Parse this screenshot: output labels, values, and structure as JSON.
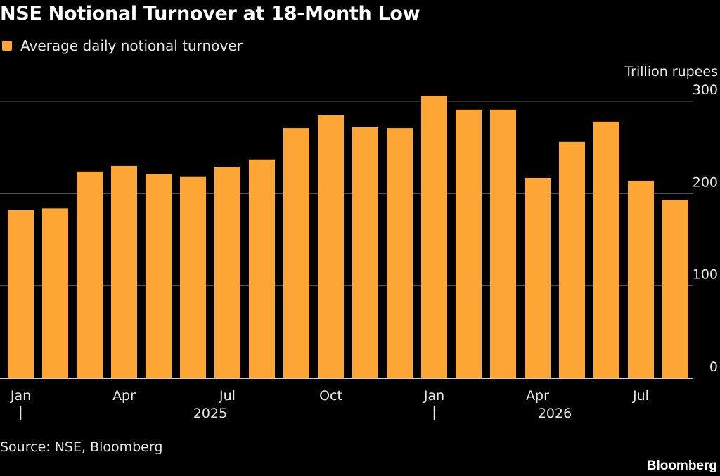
{
  "chart_data": {
    "type": "bar",
    "title": "NSE Notional Turnover at 18-Month Low",
    "ylabel": "Trillion rupees",
    "xlabel": "",
    "ylim": [
      0,
      300
    ],
    "yticks": [
      "0",
      "100",
      "200",
      "300"
    ],
    "grid": true,
    "legend_position": "top-left",
    "categories": [
      "Jan 2025",
      "Feb 2025",
      "Mar 2025",
      "Apr 2025",
      "May 2025",
      "Jun 2025",
      "Jul 2025",
      "Aug 2025",
      "Sep 2025",
      "Oct 2025",
      "Nov 2025",
      "Dec 2025",
      "Jan 2026",
      "Feb 2026",
      "Mar 2026",
      "Apr 2026",
      "May 2026",
      "Jun 2026",
      "Jul 2026",
      "Aug 2026"
    ],
    "xtick_labels": [
      {
        "index": 0,
        "label": "Jan"
      },
      {
        "index": 3,
        "label": "Apr"
      },
      {
        "index": 6,
        "label": "Jul"
      },
      {
        "index": 9,
        "label": "Oct"
      },
      {
        "index": 12,
        "label": "Jan"
      },
      {
        "index": 15,
        "label": "Apr"
      },
      {
        "index": 18,
        "label": "Jul"
      }
    ],
    "year_labels": [
      {
        "start": 0,
        "end": 11,
        "label": "2025"
      },
      {
        "start": 12,
        "end": 19,
        "label": "2026"
      }
    ],
    "series": [
      {
        "name": "Average daily notional turnover",
        "color": "#fda636",
        "values": [
          182,
          184,
          224,
          230,
          221,
          218,
          229,
          237,
          271,
          285,
          272,
          271,
          306,
          291,
          291,
          217,
          256,
          278,
          214,
          193
        ]
      }
    ]
  },
  "footer": {
    "source": "Source: NSE, Bloomberg",
    "brand": "Bloomberg"
  },
  "colors": {
    "background": "#000000",
    "bar": "#fda636",
    "grid": "#5a5a5a",
    "text": "#e8e8e8"
  }
}
